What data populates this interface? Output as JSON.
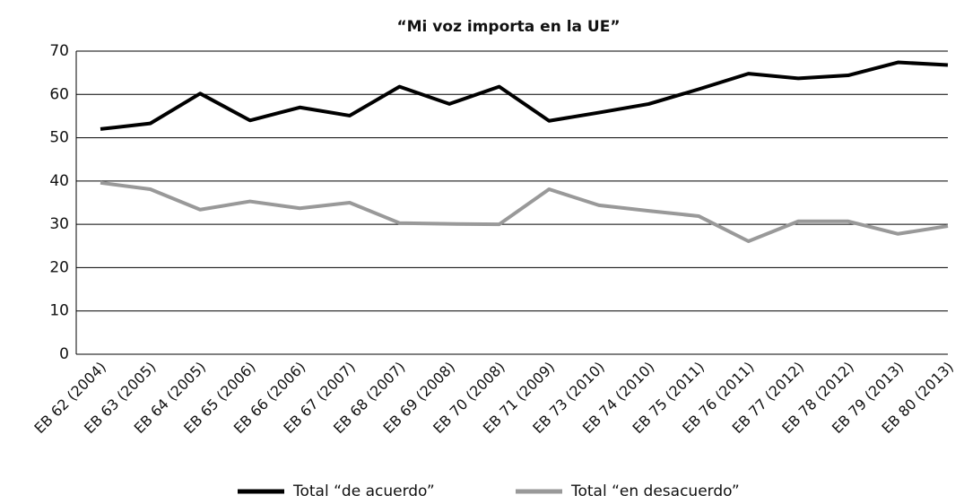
{
  "chart_data": {
    "type": "line",
    "title": "“Mi voz importa en la UE”",
    "categories": [
      "EB 62 (2004)",
      "EB 63 (2005)",
      "EB 64 (2005)",
      "EB 65 (2006)",
      "EB 66 (2006)",
      "EB 67 (2007)",
      "EB 68 (2007)",
      "EB 69 (2008)",
      "EB 70 (2008)",
      "EB 71 (2009)",
      "EB 73 (2010)",
      "EB 74 (2010)",
      "EB 75 (2011)",
      "EB 76 (2011)",
      "EB 77 (2012)",
      "EB 78 (2012)",
      "EB 79 (2013)",
      "EB 80 (2013)"
    ],
    "series": [
      {
        "name": "Total “de acuerdo”",
        "color": "#000000",
        "values": [
          52,
          53.3,
          60.2,
          54,
          57,
          55.1,
          61.8,
          57.8,
          61.8,
          53.9,
          55.8,
          57.8,
          61.2,
          64.8,
          63.7,
          64.4,
          67.4,
          66.8
        ]
      },
      {
        "name": "Total “en desacuerdo”",
        "color": "#999999",
        "values": [
          39.6,
          38.1,
          33.4,
          35.3,
          33.7,
          35,
          30.3,
          30.1,
          30,
          38.1,
          34.4,
          33.1,
          31.9,
          26.1,
          30.7,
          30.7,
          27.8,
          29.6
        ]
      }
    ],
    "ylim": [
      0,
      70
    ],
    "yticks": [
      0,
      10,
      20,
      30,
      40,
      50,
      60,
      70
    ],
    "grid": true,
    "legend": "bottom"
  }
}
